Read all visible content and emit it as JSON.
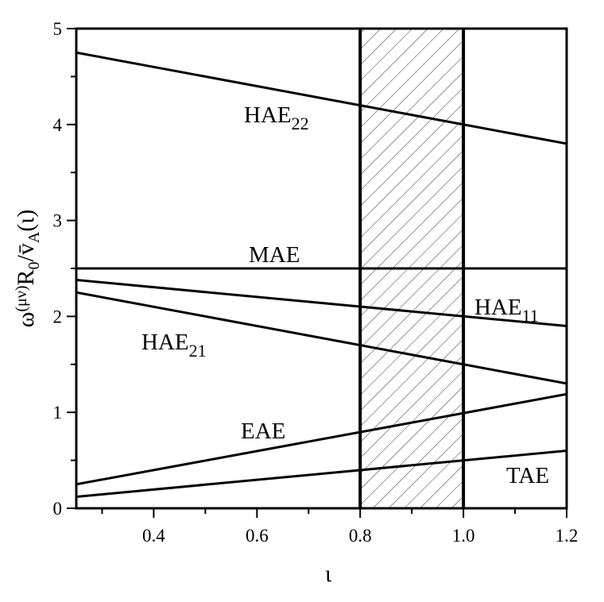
{
  "chart_data": {
    "type": "line",
    "xlabel": "ι",
    "ylabel": {
      "main": "ω",
      "sup": "(μν)",
      "mid": "R",
      "sub0": "0",
      "slash": "/v̄",
      "subA": "A",
      "tail": "(ι)"
    },
    "xlim": [
      0.25,
      1.2
    ],
    "ylim": [
      0,
      5
    ],
    "x_ticks": [
      "0.4",
      "0.6",
      "0.8",
      "1.0",
      "1.2"
    ],
    "y_ticks": [
      "0",
      "1",
      "2",
      "3",
      "4",
      "5"
    ],
    "shaded_region": {
      "x_from": 0.8,
      "x_to": 1.0,
      "pattern": "hatched"
    },
    "series": [
      {
        "name": "HAE22",
        "label_main": "HAE",
        "label_sub": "22",
        "x": [
          0.25,
          1.2
        ],
        "y": [
          4.75,
          3.8
        ]
      },
      {
        "name": "MAE",
        "label_main": "MAE",
        "label_sub": "",
        "x": [
          0.25,
          1.2
        ],
        "y": [
          2.5,
          2.5
        ]
      },
      {
        "name": "HAE11",
        "label_main": "HAE",
        "label_sub": "11",
        "x": [
          0.25,
          1.2
        ],
        "y": [
          2.38,
          1.9
        ]
      },
      {
        "name": "HAE21",
        "label_main": "HAE",
        "label_sub": "21",
        "x": [
          0.25,
          1.2
        ],
        "y": [
          2.25,
          1.3
        ]
      },
      {
        "name": "EAE",
        "label_main": "EAE",
        "label_sub": "",
        "x": [
          0.25,
          1.2
        ],
        "y": [
          0.25,
          1.19
        ]
      },
      {
        "name": "TAE",
        "label_main": "TAE",
        "label_sub": "",
        "x": [
          0.25,
          1.2
        ],
        "y": [
          0.12,
          0.6
        ]
      }
    ]
  }
}
